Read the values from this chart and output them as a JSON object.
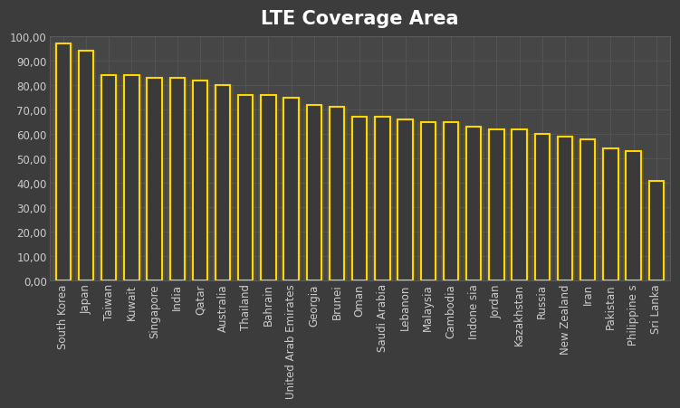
{
  "title": "LTE Coverage Area",
  "categories": [
    "South Korea",
    "Japan",
    "Taiwan",
    "Kuwait",
    "Singapore",
    "India",
    "Qatar",
    "Australia",
    "Thailand",
    "Bahrain",
    "United Arab Emirates",
    "Georgia",
    "Brunei",
    "Oman",
    "Saudi Arabia",
    "Lebanon",
    "Malaysia",
    "Cambodia",
    "Indone sia",
    "Jordan",
    "Kazakhstan",
    "Russia",
    "New Zealand",
    "Iran",
    "Pakistan",
    "Philippine s",
    "Sri Lanka"
  ],
  "values": [
    97,
    94,
    84,
    84,
    83,
    83,
    82,
    80,
    76,
    76,
    75,
    72,
    71,
    67,
    67,
    66,
    65,
    65,
    63,
    62,
    62,
    60,
    59,
    58,
    54,
    53,
    41
  ],
  "bar_color": "#3A3A3A",
  "bar_edge_color": "#FFD700",
  "background_color": "#3C3C3C",
  "plot_bg_color": "#464646",
  "grid_color": "#5A5A5A",
  "title_color": "#FFFFFF",
  "tick_color": "#CCCCCC",
  "ylim": [
    0,
    100
  ],
  "yticks": [
    0,
    10,
    20,
    30,
    40,
    50,
    60,
    70,
    80,
    90,
    100
  ],
  "title_fontsize": 15,
  "tick_fontsize": 8.5
}
